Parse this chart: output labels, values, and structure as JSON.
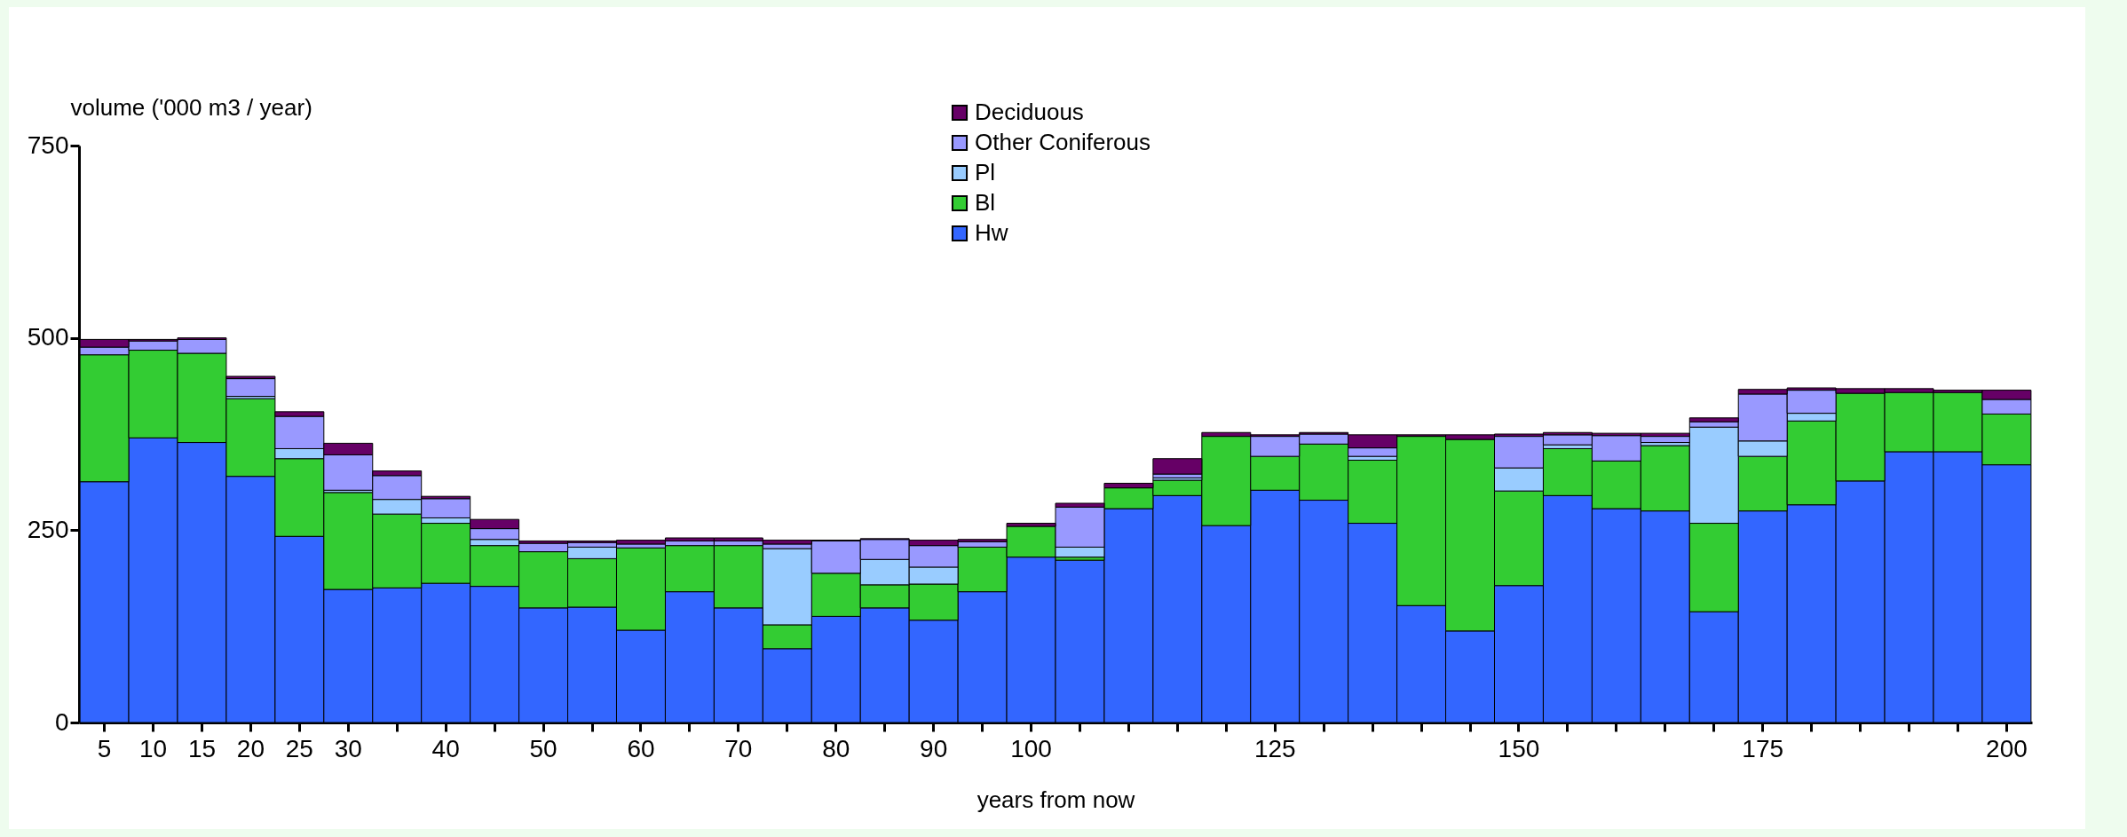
{
  "chart_data": {
    "type": "bar",
    "stacked": true,
    "xlabel": "years from now",
    "ylabel": "volume  ('000 m3 /  year)",
    "categories": [
      "5",
      "10",
      "15",
      "20",
      "25",
      "30",
      null,
      "40",
      null,
      "50",
      null,
      "60",
      null,
      "70",
      null,
      "80",
      null,
      "90",
      null,
      "100",
      null,
      null,
      null,
      null,
      "125",
      null,
      null,
      null,
      null,
      "150",
      null,
      null,
      null,
      null,
      "175",
      null,
      null,
      null,
      null,
      "200"
    ],
    "series": [
      {
        "name": "Hw",
        "color": "#3366ff",
        "values": [
          313,
          370,
          364,
          320,
          242,
          173,
          175,
          181,
          177,
          149,
          150,
          120,
          170,
          149,
          96,
          138,
          149,
          133,
          170,
          215,
          211,
          278,
          295,
          256,
          302,
          289,
          259,
          152,
          119,
          178,
          295,
          278,
          275,
          144,
          275,
          283,
          314,
          352,
          352,
          335
        ]
      },
      {
        "name": "Bl",
        "color": "#33cc33",
        "values": [
          165,
          114,
          116,
          101,
          101,
          126,
          96,
          78,
          53,
          73,
          63,
          107,
          60,
          81,
          31,
          56,
          30,
          47,
          58,
          40,
          4,
          27,
          20,
          116,
          44,
          73,
          82,
          220,
          249,
          123,
          61,
          62,
          85,
          115,
          71,
          109,
          114,
          77,
          77,
          66
        ]
      },
      {
        "name": "Pl",
        "color": "#99ccff",
        "values": [
          null,
          null,
          null,
          3,
          13,
          3,
          19,
          7,
          8,
          null,
          15,
          null,
          null,
          null,
          99,
          null,
          33,
          22,
          null,
          null,
          13,
          null,
          3,
          null,
          null,
          null,
          5,
          null,
          null,
          30,
          5,
          null,
          4,
          125,
          20,
          10,
          null,
          null,
          null,
          null
        ]
      },
      {
        "name": "Other Coniferous",
        "color": "#9999ff",
        "values": [
          10,
          12,
          18,
          23,
          42,
          46,
          31,
          25,
          14,
          11,
          6,
          5,
          6,
          6,
          6,
          42,
          26,
          28,
          7,
          null,
          52,
          null,
          5,
          null,
          26,
          13,
          11,
          null,
          null,
          41,
          13,
          33,
          8,
          7,
          61,
          30,
          null,
          null,
          null,
          19
        ]
      },
      {
        "name": "Deciduous",
        "color": "#660066",
        "values": [
          10,
          2,
          2,
          3,
          6,
          15,
          6,
          3,
          12,
          3,
          2,
          5,
          4,
          4,
          5,
          1,
          1,
          7,
          3,
          4,
          5,
          6,
          20,
          5,
          2,
          2,
          17,
          2,
          6,
          3,
          3,
          3,
          4,
          5,
          6,
          3,
          6,
          5,
          3,
          12
        ]
      }
    ],
    "ylim": [
      0,
      750
    ],
    "yticks": [
      0,
      250,
      500,
      750
    ],
    "legend": "top"
  }
}
